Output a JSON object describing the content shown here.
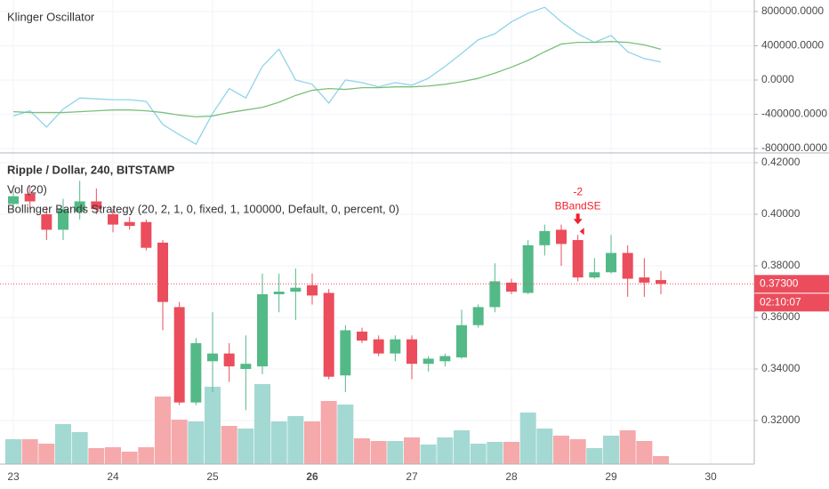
{
  "chart_data": [
    {
      "type": "line",
      "title": "Klinger Oscillator",
      "ylim": [
        -852000,
        935000
      ],
      "yticks": [
        {
          "value": 800000,
          "label": "800000.0000"
        },
        {
          "value": 400000,
          "label": "400000.0000"
        },
        {
          "value": 0,
          "label": "0.0000"
        },
        {
          "value": -400000,
          "label": "-400000.0000"
        },
        {
          "value": -800000,
          "label": "-800000.0000"
        }
      ],
      "series": [
        {
          "color": "#8fd3ea",
          "values": [
            -420000,
            -360000,
            -550000,
            -340000,
            -210000,
            -220000,
            -230000,
            -230000,
            -250000,
            -520000,
            -640000,
            -750000,
            -390000,
            -100000,
            -210000,
            160000,
            360000,
            0,
            -50000,
            -270000,
            0,
            -30000,
            -80000,
            -30000,
            -60000,
            20000,
            160000,
            310000,
            470000,
            540000,
            680000,
            780000,
            850000,
            680000,
            540000,
            440000,
            520000,
            330000,
            250000,
            210000,
            null,
            null,
            null
          ]
        },
        {
          "color": "#7cbf7c",
          "values": [
            -370000,
            -380000,
            -380000,
            -380000,
            -370000,
            -360000,
            -350000,
            -350000,
            -360000,
            -380000,
            -410000,
            -430000,
            -420000,
            -380000,
            -350000,
            -320000,
            -260000,
            -180000,
            -120000,
            -100000,
            -110000,
            -90000,
            -90000,
            -80000,
            -80000,
            -70000,
            -50000,
            -20000,
            20000,
            80000,
            150000,
            230000,
            330000,
            420000,
            440000,
            440000,
            450000,
            440000,
            410000,
            360000,
            null,
            null,
            null
          ]
        }
      ]
    },
    {
      "type": "candlestick",
      "title": "Ripple / Dollar, 240, BITSTAMP",
      "volume_title": "Vol (20)",
      "strategy_title": "Bollinger Bands Strategy (20, 2, 1, 0, fixed, 1, 100000, Default, 0, percent, 0)",
      "categories": [
        "23",
        null,
        null,
        null,
        null,
        null,
        "24",
        null,
        null,
        null,
        null,
        null,
        "25",
        null,
        null,
        null,
        null,
        null,
        "26",
        null,
        null,
        null,
        null,
        null,
        "27",
        null,
        null,
        null,
        null,
        null,
        "28",
        null,
        null,
        null,
        null,
        null,
        "29",
        null,
        null,
        null,
        null,
        null,
        "30"
      ],
      "open": [
        0.404,
        0.408,
        0.4,
        0.394,
        0.401,
        0.405,
        0.4,
        0.397,
        0.397,
        0.389,
        0.364,
        0.327,
        0.343,
        0.346,
        0.34,
        0.341,
        0.369,
        0.37,
        0.3725,
        0.3695,
        0.3375,
        0.3545,
        0.3515,
        0.346,
        0.3515,
        0.342,
        0.343,
        0.3445,
        0.357,
        0.364,
        0.3735,
        0.3695,
        0.388,
        0.394,
        0.39,
        0.3755,
        0.3775,
        0.385,
        0.3755,
        0.3745,
        null,
        null,
        null
      ],
      "high": [
        0.409,
        0.411,
        0.403,
        0.406,
        0.413,
        0.41,
        0.402,
        0.399,
        0.398,
        0.39,
        0.366,
        0.352,
        0.362,
        0.35,
        0.353,
        0.377,
        0.377,
        0.379,
        0.377,
        0.371,
        0.357,
        0.356,
        0.353,
        0.353,
        0.353,
        0.345,
        0.346,
        0.363,
        0.365,
        0.381,
        0.375,
        0.39,
        0.396,
        0.396,
        0.392,
        0.383,
        0.392,
        0.388,
        0.383,
        0.378,
        null,
        null,
        null
      ],
      "low": [
        0.402,
        0.402,
        0.39,
        0.39,
        0.398,
        0.4,
        0.393,
        0.394,
        0.386,
        0.355,
        0.326,
        0.326,
        0.331,
        0.335,
        0.324,
        0.338,
        0.362,
        0.359,
        0.365,
        0.336,
        0.331,
        0.35,
        0.345,
        0.343,
        0.336,
        0.339,
        0.341,
        0.344,
        0.356,
        0.362,
        0.369,
        0.369,
        0.384,
        0.38,
        0.374,
        0.375,
        0.377,
        0.368,
        0.368,
        0.369,
        null,
        null,
        null
      ],
      "close": [
        0.407,
        0.405,
        0.394,
        0.402,
        0.405,
        0.402,
        0.396,
        0.3955,
        0.387,
        0.366,
        0.327,
        0.35,
        0.346,
        0.341,
        0.342,
        0.369,
        0.37,
        0.3715,
        0.3685,
        0.337,
        0.355,
        0.351,
        0.346,
        0.3515,
        0.342,
        0.344,
        0.345,
        0.357,
        0.364,
        0.374,
        0.37,
        0.388,
        0.3935,
        0.3885,
        0.3755,
        0.3775,
        0.385,
        0.375,
        0.3735,
        0.373,
        null,
        null,
        null
      ],
      "volume": [
        28,
        28,
        23,
        45,
        36,
        18,
        19,
        14,
        19,
        76,
        50,
        48,
        87,
        43,
        40,
        90,
        48,
        54,
        48,
        71,
        67,
        29,
        26,
        26,
        30,
        22,
        30,
        38,
        23,
        25,
        25,
        58,
        40,
        32,
        28,
        18,
        32,
        38,
        26,
        9,
        null,
        null,
        null
      ],
      "vlim": [
        0,
        350
      ],
      "ylim": [
        0.3031,
        0.4238
      ],
      "yticks": [
        {
          "value": 0.42,
          "label": "0.42000"
        },
        {
          "value": 0.4,
          "label": "0.40000"
        },
        {
          "value": 0.38,
          "label": "0.38000"
        },
        {
          "value": 0.36,
          "label": "0.36000"
        },
        {
          "value": 0.34,
          "label": "0.34000"
        },
        {
          "value": 0.32,
          "label": "0.32000"
        }
      ],
      "up_color": "#53b987",
      "down_color": "#eb4d5c",
      "volume_up_color": "#a3d9d2",
      "volume_down_color": "#f5a9ab",
      "last_price": {
        "value": 0.373,
        "label": "0.37300"
      },
      "countdown": "02:10:07",
      "signal": {
        "index": 34,
        "quantity": -2,
        "label": "BBandSE",
        "color": "#f0222f"
      },
      "grid": true
    }
  ]
}
